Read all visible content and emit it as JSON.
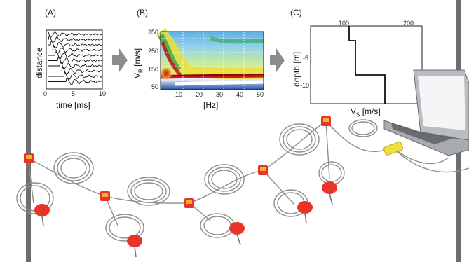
{
  "panels": {
    "a": {
      "label": "(A)",
      "xlabel": "time [ms]",
      "ylabel": "distance",
      "xticks": [
        "0",
        "5",
        "10"
      ]
    },
    "b": {
      "label": "(B)",
      "xlabel": "[Hz]",
      "ylabel_main": "V",
      "ylabel_sub": "R",
      "ylabel_unit": "[m/s]",
      "yticks": [
        "350",
        "250",
        "150",
        "50"
      ],
      "xticks": [
        "10",
        "20",
        "30",
        "40",
        "50"
      ]
    },
    "c": {
      "label": "(C)",
      "ylabel": "depth [m]",
      "xlabel_main": "V",
      "xlabel_sub": "S",
      "xlabel_unit": "[m/s]",
      "xticks": [
        "100",
        "200"
      ],
      "yticks": [
        "-5",
        "-10"
      ]
    }
  },
  "colors": {
    "frame": "#6e6e6e",
    "arrow": "#8c8c8c",
    "geophone": "#e8342a",
    "geophone_top": "#f2b233",
    "cable": "#8e8e8e",
    "adapter": "#f0e040"
  }
}
